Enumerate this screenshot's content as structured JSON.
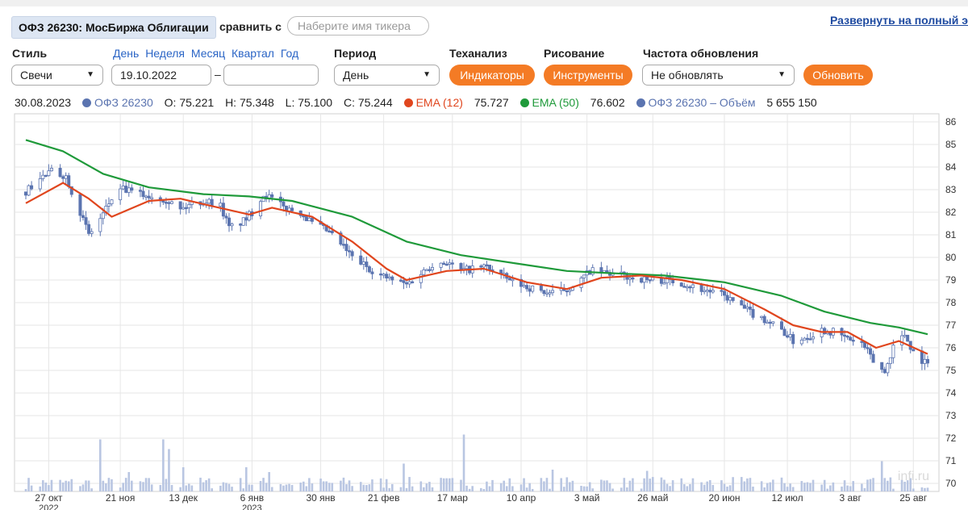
{
  "header": {
    "instrument_title": "ОФЗ 26230: МосБиржа Облигации",
    "compare_label": "сравнить с",
    "ticker_placeholder": "Наберите имя тикера",
    "fullscreen_link": "Развернуть на полный экран"
  },
  "controls": {
    "style_label": "Стиль",
    "style_value": "Свечи",
    "period_links": [
      "День",
      "Неделя",
      "Месяц",
      "Квартал",
      "Год"
    ],
    "date_from": "19.10.2022",
    "date_to": "",
    "date_separator": "–",
    "period_label": "Период",
    "period_value": "День",
    "ta_label": "Теханализ",
    "indicators_button": "Индикаторы",
    "drawing_label": "Рисование",
    "tools_button": "Инструменты",
    "refresh_label": "Частота обновления",
    "refresh_value": "Не обновлять",
    "update_button": "Обновить"
  },
  "legend": {
    "date": "30.08.2023",
    "series_name": "ОФЗ 26230",
    "open": "O: 75.221",
    "high": "H: 75.348",
    "low": "L: 75.100",
    "close": "C: 75.244",
    "ema12_label": "EMA (12)",
    "ema12_value": "75.727",
    "ema50_label": "EMA (50)",
    "ema50_value": "76.602",
    "volume_label": "ОФЗ 26230 – Объём",
    "volume_value": "5 655 150"
  },
  "colors": {
    "candle": "#5b74b0",
    "ema12": "#e0461e",
    "ema50": "#1f9a3a",
    "volume": "#b9c6e2",
    "accent": "#f47b25",
    "link": "#2a64c5"
  },
  "chart_data": {
    "type": "candlestick",
    "x_range": [
      "2022-10-19",
      "2023-08-30"
    ],
    "ylim": [
      70,
      86
    ],
    "y_ticks": [
      70,
      71,
      72,
      73,
      74,
      75,
      76,
      77,
      78,
      79,
      80,
      81,
      82,
      83,
      84,
      85,
      86
    ],
    "x_ticks": [
      {
        "date": "2022-10-27",
        "label": "27 окт",
        "sublabel": "2022"
      },
      {
        "date": "2022-11-21",
        "label": "21 ноя",
        "sublabel": ""
      },
      {
        "date": "2022-12-13",
        "label": "13 дек",
        "sublabel": ""
      },
      {
        "date": "2023-01-06",
        "label": "6 янв",
        "sublabel": "2023"
      },
      {
        "date": "2023-01-30",
        "label": "30 янв",
        "sublabel": ""
      },
      {
        "date": "2023-02-21",
        "label": "21 фев",
        "sublabel": ""
      },
      {
        "date": "2023-03-17",
        "label": "17 мар",
        "sublabel": ""
      },
      {
        "date": "2023-04-10",
        "label": "10 апр",
        "sublabel": ""
      },
      {
        "date": "2023-05-03",
        "label": "3 май",
        "sublabel": ""
      },
      {
        "date": "2023-05-26",
        "label": "26 май",
        "sublabel": ""
      },
      {
        "date": "2023-06-20",
        "label": "20 июн",
        "sublabel": ""
      },
      {
        "date": "2023-07-12",
        "label": "12 июл",
        "sublabel": ""
      },
      {
        "date": "2023-08-03",
        "label": "3 авг",
        "sublabel": ""
      },
      {
        "date": "2023-08-25",
        "label": "25 авг",
        "sublabel": ""
      }
    ],
    "close_path": [
      [
        "2022-10-19",
        82.9
      ],
      [
        "2022-10-24",
        83.5
      ],
      [
        "2022-10-28",
        83.8
      ],
      [
        "2022-11-02",
        83.6
      ],
      [
        "2022-11-07",
        82.0
      ],
      [
        "2022-11-10",
        81.0
      ],
      [
        "2022-11-14",
        81.7
      ],
      [
        "2022-11-18",
        82.6
      ],
      [
        "2022-11-22",
        83.0
      ],
      [
        "2022-11-28",
        82.8
      ],
      [
        "2022-12-02",
        82.7
      ],
      [
        "2022-12-07",
        82.6
      ],
      [
        "2022-12-12",
        82.1
      ],
      [
        "2022-12-16",
        82.4
      ],
      [
        "2022-12-21",
        82.5
      ],
      [
        "2022-12-26",
        82.3
      ],
      [
        "2022-12-29",
        81.3
      ],
      [
        "2023-01-03",
        81.6
      ],
      [
        "2023-01-06",
        82.0
      ],
      [
        "2023-01-10",
        82.8
      ],
      [
        "2023-01-13",
        82.6
      ],
      [
        "2023-01-17",
        82.2
      ],
      [
        "2023-01-23",
        82.0
      ],
      [
        "2023-01-27",
        81.5
      ],
      [
        "2023-02-01",
        81.2
      ],
      [
        "2023-02-06",
        80.6
      ],
      [
        "2023-02-10",
        80.0
      ],
      [
        "2023-02-15",
        79.6
      ],
      [
        "2023-02-20",
        79.2
      ],
      [
        "2023-02-24",
        79.0
      ],
      [
        "2023-03-01",
        78.8
      ],
      [
        "2023-03-06",
        79.3
      ],
      [
        "2023-03-10",
        79.7
      ],
      [
        "2023-03-15",
        79.8
      ],
      [
        "2023-03-20",
        79.4
      ],
      [
        "2023-03-24",
        79.5
      ],
      [
        "2023-03-29",
        79.6
      ],
      [
        "2023-04-03",
        79.2
      ],
      [
        "2023-04-07",
        78.9
      ],
      [
        "2023-04-12",
        78.7
      ],
      [
        "2023-04-17",
        78.5
      ],
      [
        "2023-04-21",
        78.4
      ],
      [
        "2023-04-26",
        78.6
      ],
      [
        "2023-05-01",
        79.0
      ],
      [
        "2023-05-04",
        79.4
      ],
      [
        "2023-05-10",
        79.3
      ],
      [
        "2023-05-15",
        79.2
      ],
      [
        "2023-05-19",
        79.1
      ],
      [
        "2023-05-24",
        79.0
      ],
      [
        "2023-05-30",
        79.0
      ],
      [
        "2023-06-05",
        78.9
      ],
      [
        "2023-06-09",
        78.7
      ],
      [
        "2023-06-15",
        78.5
      ],
      [
        "2023-06-20",
        78.3
      ],
      [
        "2023-06-26",
        77.8
      ],
      [
        "2023-06-30",
        77.5
      ],
      [
        "2023-07-05",
        77.2
      ],
      [
        "2023-07-10",
        76.8
      ],
      [
        "2023-07-14",
        76.3
      ],
      [
        "2023-07-19",
        76.5
      ],
      [
        "2023-07-24",
        76.8
      ],
      [
        "2023-07-28",
        76.7
      ],
      [
        "2023-08-02",
        76.4
      ],
      [
        "2023-08-07",
        76.2
      ],
      [
        "2023-08-11",
        75.4
      ],
      [
        "2023-08-15",
        74.9
      ],
      [
        "2023-08-18",
        76.1
      ],
      [
        "2023-08-22",
        76.6
      ],
      [
        "2023-08-25",
        75.8
      ],
      [
        "2023-08-30",
        75.24
      ]
    ],
    "ema12": [
      [
        "2022-10-19",
        82.4
      ],
      [
        "2022-11-01",
        83.3
      ],
      [
        "2022-11-10",
        82.6
      ],
      [
        "2022-11-18",
        81.8
      ],
      [
        "2022-12-01",
        82.5
      ],
      [
        "2022-12-12",
        82.6
      ],
      [
        "2022-12-22",
        82.3
      ],
      [
        "2023-01-05",
        81.9
      ],
      [
        "2023-01-13",
        82.2
      ],
      [
        "2023-01-27",
        81.8
      ],
      [
        "2023-02-10",
        80.7
      ],
      [
        "2023-02-22",
        79.5
      ],
      [
        "2023-03-01",
        79.0
      ],
      [
        "2023-03-15",
        79.4
      ],
      [
        "2023-03-28",
        79.5
      ],
      [
        "2023-04-12",
        78.9
      ],
      [
        "2023-04-26",
        78.6
      ],
      [
        "2023-05-08",
        79.1
      ],
      [
        "2023-05-22",
        79.2
      ],
      [
        "2023-06-05",
        79.0
      ],
      [
        "2023-06-20",
        78.6
      ],
      [
        "2023-07-04",
        77.7
      ],
      [
        "2023-07-14",
        77.0
      ],
      [
        "2023-07-24",
        76.7
      ],
      [
        "2023-08-02",
        76.7
      ],
      [
        "2023-08-12",
        76.0
      ],
      [
        "2023-08-20",
        76.3
      ],
      [
        "2023-08-30",
        75.73
      ]
    ],
    "ema50": [
      [
        "2022-10-19",
        85.2
      ],
      [
        "2022-11-01",
        84.7
      ],
      [
        "2022-11-15",
        83.7
      ],
      [
        "2022-12-01",
        83.1
      ],
      [
        "2022-12-20",
        82.8
      ],
      [
        "2023-01-05",
        82.7
      ],
      [
        "2023-01-20",
        82.5
      ],
      [
        "2023-02-10",
        81.8
      ],
      [
        "2023-03-01",
        80.7
      ],
      [
        "2023-03-20",
        80.1
      ],
      [
        "2023-04-10",
        79.7
      ],
      [
        "2023-04-26",
        79.4
      ],
      [
        "2023-05-12",
        79.3
      ],
      [
        "2023-05-30",
        79.2
      ],
      [
        "2023-06-20",
        78.9
      ],
      [
        "2023-07-10",
        78.3
      ],
      [
        "2023-07-25",
        77.6
      ],
      [
        "2023-08-10",
        77.1
      ],
      [
        "2023-08-20",
        76.9
      ],
      [
        "2023-08-30",
        76.6
      ]
    ],
    "volume_spikes": [
      [
        "2022-11-14",
        0.43
      ],
      [
        "2022-11-24",
        0.16
      ],
      [
        "2022-12-06",
        0.43
      ],
      [
        "2022-12-08",
        0.35
      ],
      [
        "2022-12-10",
        0.8
      ],
      [
        "2022-12-13",
        0.2
      ],
      [
        "2023-01-04",
        0.2
      ],
      [
        "2023-01-12",
        0.16
      ],
      [
        "2023-02-28",
        0.23
      ],
      [
        "2023-03-21",
        0.47
      ],
      [
        "2023-04-21",
        0.18
      ],
      [
        "2023-05-24",
        0.17
      ],
      [
        "2023-08-14",
        0.25
      ]
    ],
    "watermark": "infi.ru"
  }
}
